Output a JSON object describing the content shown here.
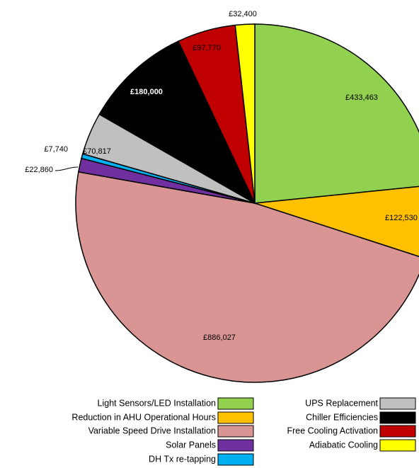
{
  "chart_data": {
    "type": "pie",
    "categories": [
      "Light Sensors/LED Installation",
      "Reduction in AHU Operational Hours",
      "Variable Speed Drive Installation",
      "Solar Panels",
      "DH Tx re-tapping",
      "UPS Replacement",
      "Chiller Efficiencies",
      "Free Cooling Activation",
      "Adiabatic Cooling"
    ],
    "values": [
      433463,
      122530,
      886027,
      22860,
      7740,
      70817,
      180000,
      97770,
      32400
    ],
    "value_labels": [
      "£433,463",
      "£122,530",
      "£886,027",
      "£22,860",
      "£7,740",
      "£70,817",
      "£180,000",
      "£97,770",
      "£32,400"
    ],
    "colors": [
      "#92d050",
      "#ffc000",
      "#d99594",
      "#7030a0",
      "#00b0f0",
      "#c0c0c0",
      "#000000",
      "#c00000",
      "#ffff00"
    ],
    "legend": "bottom"
  }
}
